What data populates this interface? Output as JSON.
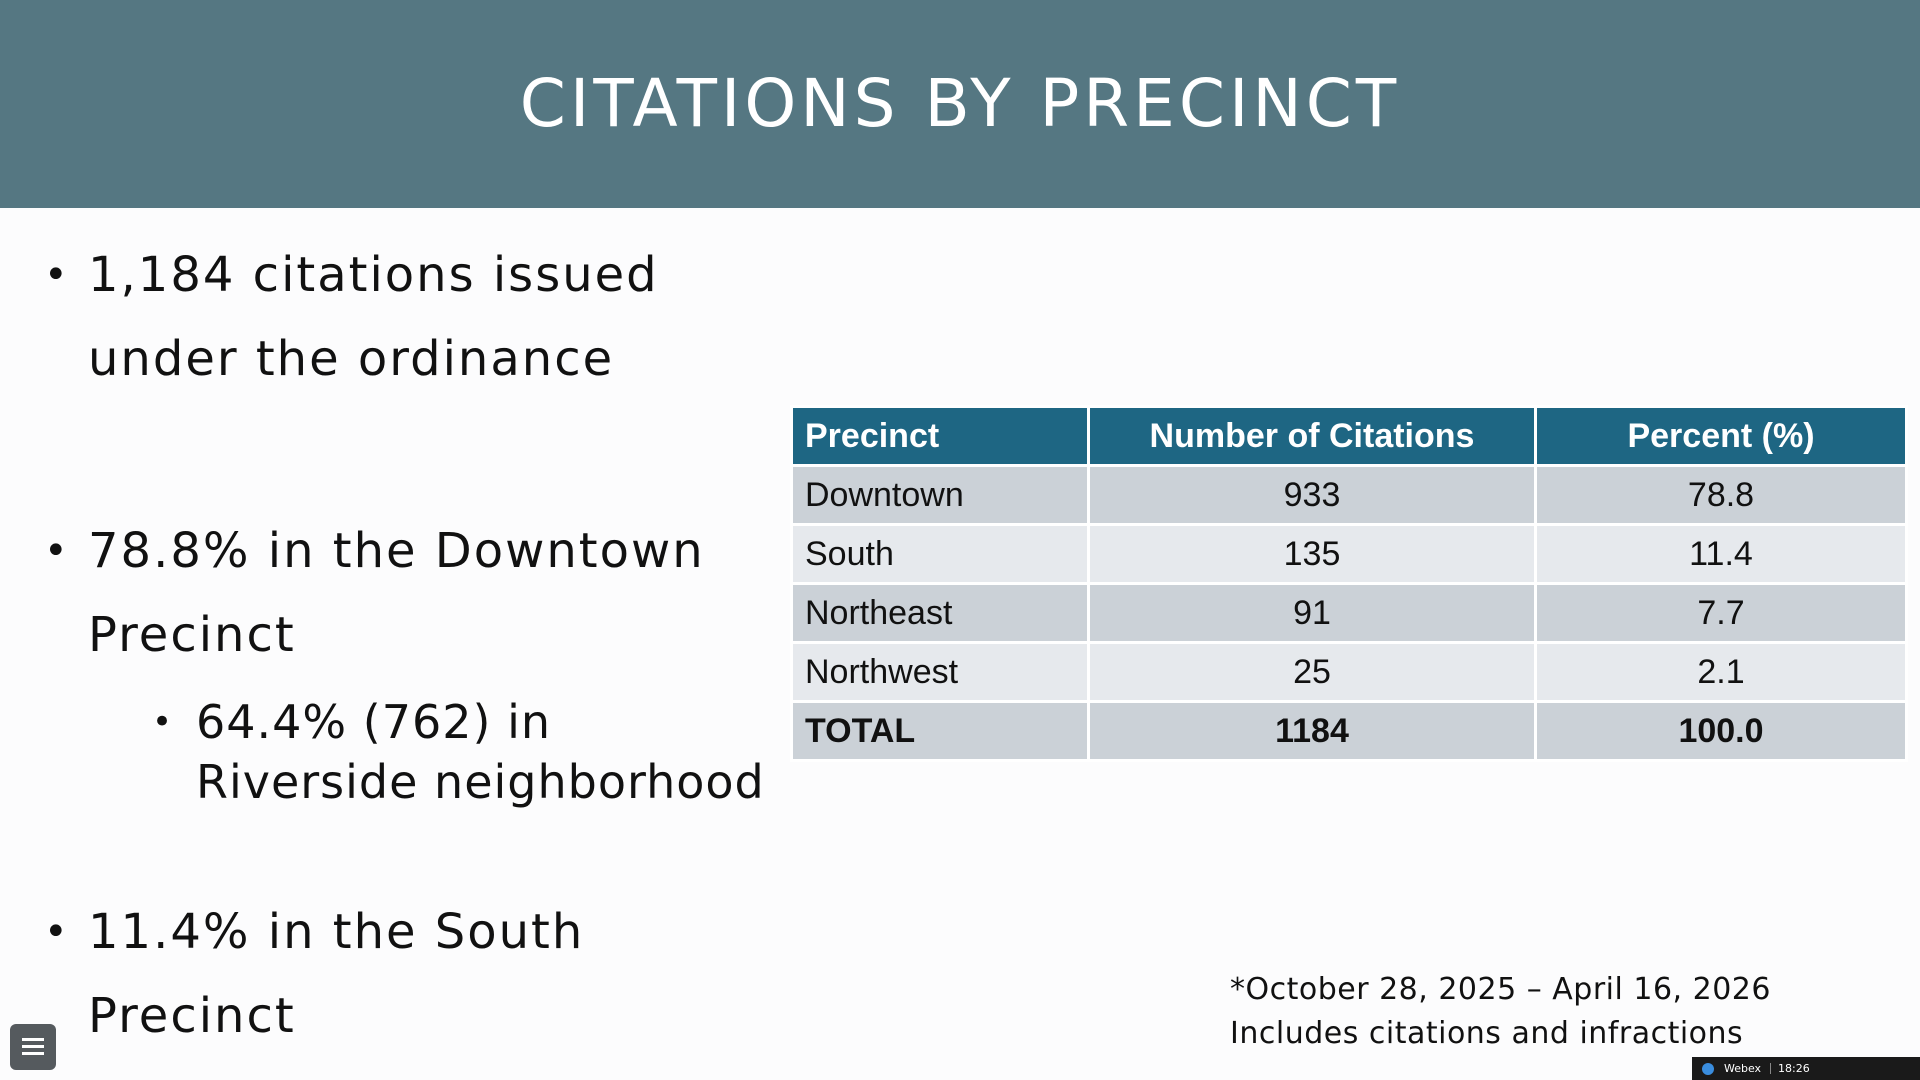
{
  "slide": {
    "title": "CITATIONS BY PRECINCT",
    "title_bar_color": "#557782"
  },
  "bullets": [
    {
      "text": "1,184 citations issued under the ordinance"
    },
    {
      "text": "78.8% in the Downtown Precinct"
    },
    {
      "text": "11.4% in the South Precinct"
    }
  ],
  "sub_bullets": [
    {
      "text": "64.4% (762) in Riverside neighborhood"
    }
  ],
  "table": {
    "header_color": "#1e6683",
    "headers": [
      "Precinct",
      "Number of Citations",
      "Percent (%)"
    ],
    "rows": [
      [
        "Downtown",
        "933",
        "78.8"
      ],
      [
        "South",
        "135",
        "11.4"
      ],
      [
        "Northeast",
        "91",
        "7.7"
      ],
      [
        "Northwest",
        "25",
        "2.1"
      ]
    ],
    "total": [
      "TOTAL",
      "1184",
      "100.0"
    ]
  },
  "footnote": {
    "line1": "*October 28, 2025 – April 16, 2026",
    "line2": "Includes citations and infractions"
  },
  "controls": {
    "menu_icon": "hamburger-menu-icon"
  },
  "taskbar": {
    "app_name": "Webex",
    "time": "18:26",
    "logo_icon": "webex-logo-icon"
  }
}
